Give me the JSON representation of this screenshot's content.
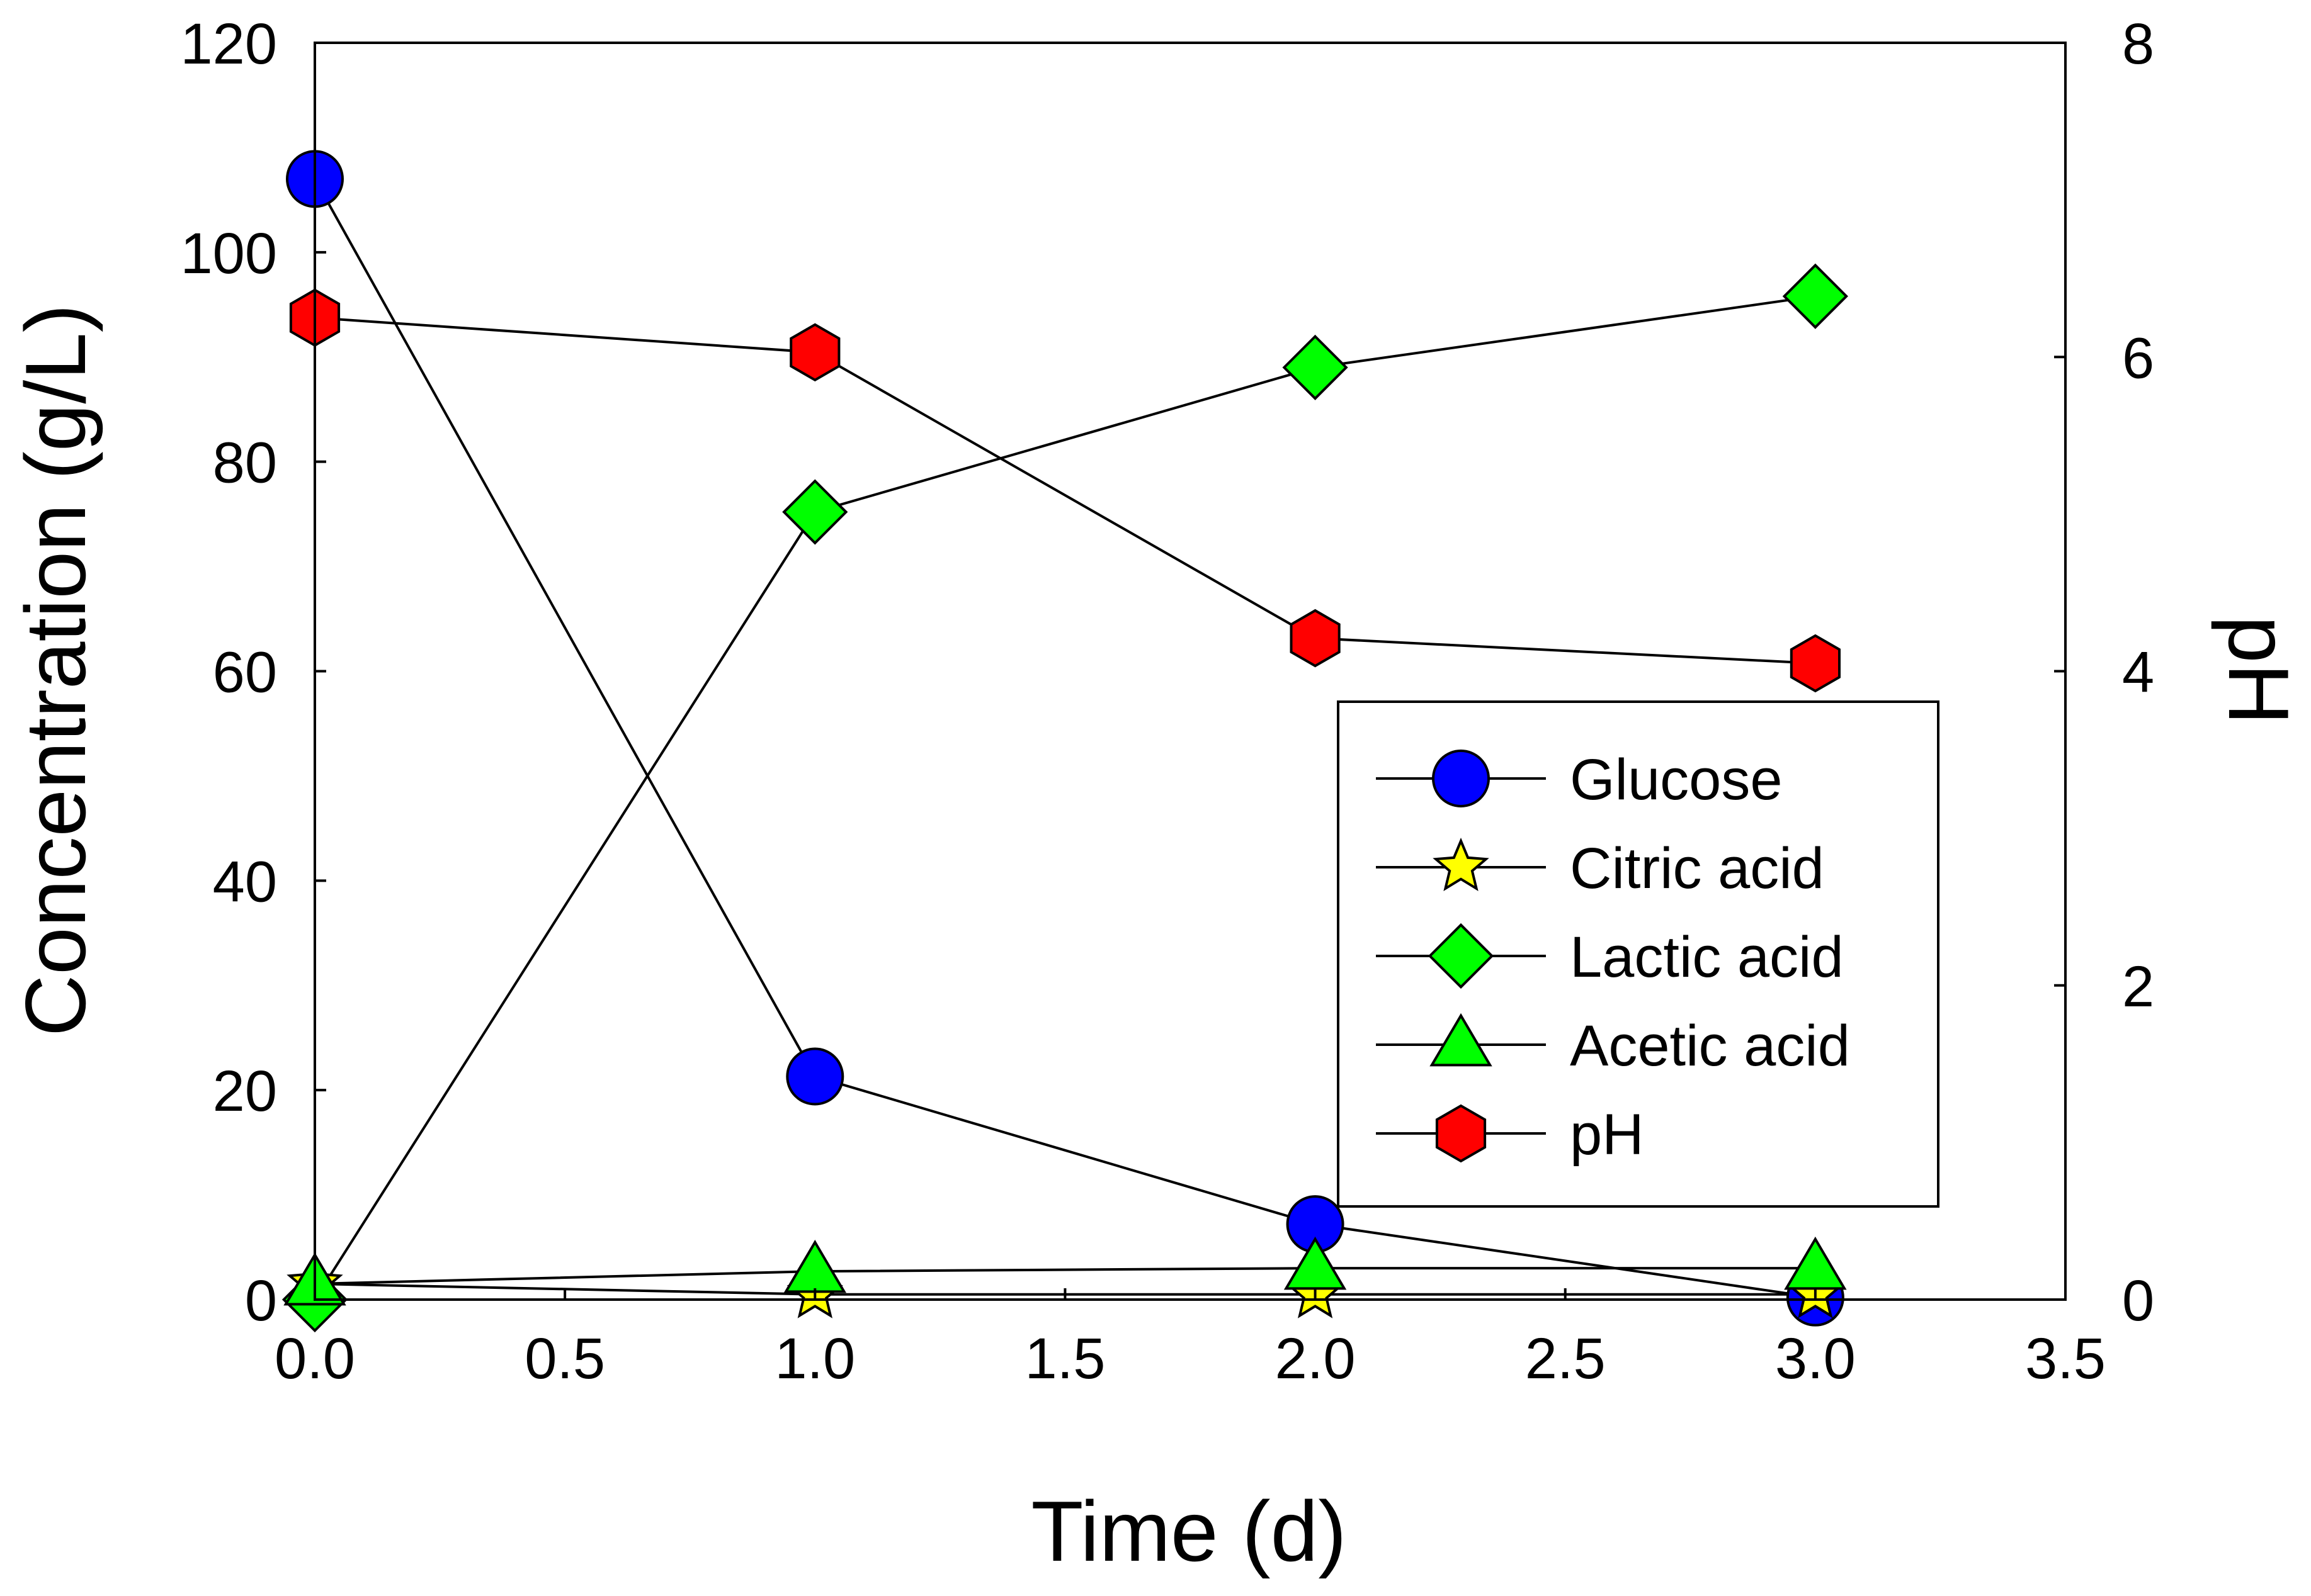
{
  "chart_data": {
    "type": "line",
    "x": [
      0,
      1,
      2,
      3
    ],
    "xlabel": "Time (d)",
    "ylabel": "Concentration (g/L)",
    "y2label": "pH",
    "xlim": [
      0,
      3.5
    ],
    "ylim": [
      0,
      120
    ],
    "y2lim": [
      0,
      8
    ],
    "xticks": [
      "0.0",
      "0.5",
      "1.0",
      "1.5",
      "2.0",
      "2.5",
      "3.0",
      "3.5"
    ],
    "yticks": [
      "0",
      "20",
      "40",
      "60",
      "80",
      "100",
      "120"
    ],
    "y2ticks": [
      "0",
      "2",
      "4",
      "6",
      "8"
    ],
    "grid": false,
    "legend_position": "center-right",
    "series": [
      {
        "name": "Glucose",
        "axis": "left",
        "marker": "circle",
        "color": "#0000ff",
        "values": [
          107,
          21.3,
          7.2,
          0.2
        ]
      },
      {
        "name": "Citric acid",
        "axis": "left",
        "marker": "star",
        "color": "#ffff00",
        "values": [
          1.5,
          0.5,
          0.5,
          0.5
        ]
      },
      {
        "name": "Lactic acid",
        "axis": "left",
        "marker": "diamond",
        "color": "#00ff00",
        "values": [
          0,
          75.2,
          89,
          95.8
        ]
      },
      {
        "name": "Acetic acid",
        "axis": "left",
        "marker": "triangle",
        "color": "#00ff00",
        "values": [
          1.5,
          2.7,
          3,
          3
        ]
      },
      {
        "name": "pH",
        "axis": "right",
        "marker": "hexagon",
        "color": "#ff0000",
        "values": [
          6.25,
          6.03,
          4.21,
          4.05
        ],
        "errors": [
          0.03,
          0.1,
          0.03,
          0.03
        ]
      }
    ]
  }
}
